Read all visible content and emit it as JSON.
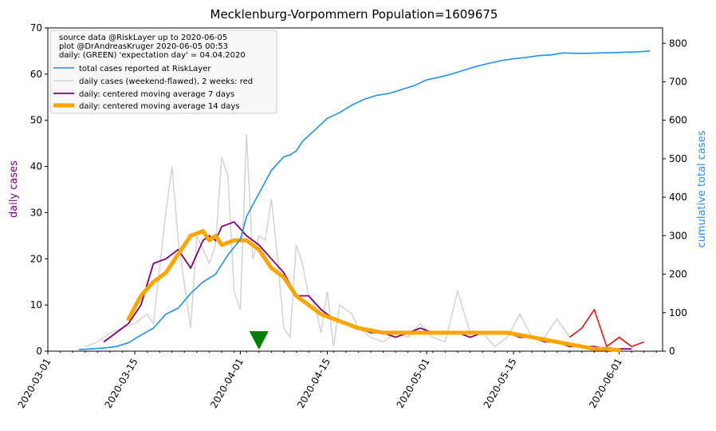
{
  "chart_data": {
    "type": "line",
    "title": "Mecklenburg-Vorpommern Population=1609675",
    "ylabel_left": "daily cases",
    "ylabel_right": "cumulative total cases",
    "ylim_left": [
      0,
      70
    ],
    "ylim_right": [
      0,
      840
    ],
    "yticks_left": [
      "0",
      "10",
      "20",
      "30",
      "40",
      "50",
      "60",
      "70"
    ],
    "yticks_right": [
      "0",
      "100",
      "200",
      "300",
      "400",
      "500",
      "600",
      "700",
      "800"
    ],
    "x_range": [
      "2020-03-01",
      "2020-06-08"
    ],
    "xticks": [
      "2020-03-01",
      "2020-03-15",
      "2020-04-01",
      "2020-04-15",
      "2020-05-01",
      "2020-05-15",
      "2020-06-01"
    ],
    "grid": false,
    "legend_position": "top-left",
    "legend_header": [
      "source data @RiskLayer up to 2020-06-05",
      "plot @DrAndreasKruger 2020-06-05 00:53",
      "daily: (GREEN) 'expectation day' = 04.04.2020"
    ],
    "expectation_day": "2020-04-04",
    "colors": {
      "cumulative": "#1e90ff",
      "daily": "#d3d3d3",
      "daily_recent": "#ff0000",
      "ma7": "#800080",
      "ma14": "#ffa500",
      "marker": "#008000",
      "left_axis_label": "#800080",
      "right_axis_label": "#1e90ff"
    },
    "series": [
      {
        "name": "total cases reported at RiskLayer",
        "axis": "right",
        "x": [
          "2020-03-06",
          "2020-03-08",
          "2020-03-10",
          "2020-03-12",
          "2020-03-14",
          "2020-03-16",
          "2020-03-18",
          "2020-03-19",
          "2020-03-20",
          "2020-03-22",
          "2020-03-24",
          "2020-03-26",
          "2020-03-28",
          "2020-03-29",
          "2020-03-30",
          "2020-03-31",
          "2020-04-01",
          "2020-04-02",
          "2020-04-03",
          "2020-04-04",
          "2020-04-05",
          "2020-04-06",
          "2020-04-08",
          "2020-04-09",
          "2020-04-10",
          "2020-04-11",
          "2020-04-12",
          "2020-04-13",
          "2020-04-15",
          "2020-04-17",
          "2020-04-19",
          "2020-04-21",
          "2020-04-23",
          "2020-04-25",
          "2020-04-27",
          "2020-04-29",
          "2020-05-01",
          "2020-05-03",
          "2020-05-05",
          "2020-05-07",
          "2020-05-09",
          "2020-05-11",
          "2020-05-13",
          "2020-05-15",
          "2020-05-17",
          "2020-05-19",
          "2020-05-21",
          "2020-05-23",
          "2020-05-25",
          "2020-05-27",
          "2020-05-29",
          "2020-05-31",
          "2020-06-02",
          "2020-06-04",
          "2020-06-06"
        ],
        "values": [
          4,
          6,
          8,
          12,
          22,
          42,
          60,
          78,
          96,
          112,
          150,
          180,
          200,
          225,
          250,
          270,
          290,
          350,
          380,
          410,
          440,
          470,
          505,
          510,
          520,
          545,
          560,
          575,
          605,
          620,
          640,
          655,
          665,
          670,
          680,
          690,
          705,
          712,
          720,
          730,
          740,
          748,
          755,
          760,
          763,
          768,
          770,
          775,
          774,
          774,
          775,
          776,
          777,
          778,
          780
        ]
      },
      {
        "name": "daily cases (weekend-flawed), 2 weeks: red",
        "axis": "left",
        "x": [
          "2020-03-07",
          "2020-03-09",
          "2020-03-11",
          "2020-03-13",
          "2020-03-15",
          "2020-03-17",
          "2020-03-18",
          "2020-03-20",
          "2020-03-21",
          "2020-03-22",
          "2020-03-24",
          "2020-03-25",
          "2020-03-27",
          "2020-03-28",
          "2020-03-29",
          "2020-03-30",
          "2020-03-31",
          "2020-04-01",
          "2020-04-02",
          "2020-04-03",
          "2020-04-04",
          "2020-04-05",
          "2020-04-06",
          "2020-04-07",
          "2020-04-08",
          "2020-04-09",
          "2020-04-10",
          "2020-04-11",
          "2020-04-12",
          "2020-04-13",
          "2020-04-14",
          "2020-04-15",
          "2020-04-16",
          "2020-04-17",
          "2020-04-18",
          "2020-04-19",
          "2020-04-20",
          "2020-04-22",
          "2020-04-24",
          "2020-04-26",
          "2020-04-28",
          "2020-04-30",
          "2020-05-02",
          "2020-05-04",
          "2020-05-06",
          "2020-05-08",
          "2020-05-10",
          "2020-05-12",
          "2020-05-14",
          "2020-05-16",
          "2020-05-18",
          "2020-05-20",
          "2020-05-22",
          "2020-05-24",
          "2020-05-26",
          "2020-05-28",
          "2020-05-30",
          "2020-06-01",
          "2020-06-03",
          "2020-06-05"
        ],
        "values": [
          1,
          2,
          4,
          5,
          6,
          8,
          6,
          30,
          40,
          24,
          5,
          25,
          19,
          23,
          42,
          38,
          13,
          9,
          47,
          20,
          25,
          24,
          33,
          20,
          5,
          3,
          23,
          19,
          12,
          10,
          4,
          13,
          1,
          10,
          9,
          8,
          5,
          3,
          2,
          4,
          3,
          6,
          3,
          2,
          13,
          4,
          4,
          1,
          3,
          8,
          3,
          3,
          7,
          3,
          5,
          9,
          1,
          3,
          1,
          2
        ]
      },
      {
        "name": "daily: centered moving average 7 days",
        "axis": "left",
        "x": [
          "2020-03-10",
          "2020-03-12",
          "2020-03-14",
          "2020-03-16",
          "2020-03-18",
          "2020-03-20",
          "2020-03-22",
          "2020-03-24",
          "2020-03-26",
          "2020-03-27",
          "2020-03-28",
          "2020-03-29",
          "2020-03-31",
          "2020-04-02",
          "2020-04-04",
          "2020-04-06",
          "2020-04-08",
          "2020-04-10",
          "2020-04-12",
          "2020-04-14",
          "2020-04-16",
          "2020-04-18",
          "2020-04-20",
          "2020-04-22",
          "2020-04-24",
          "2020-04-26",
          "2020-04-28",
          "2020-04-30",
          "2020-05-02",
          "2020-05-04",
          "2020-05-06",
          "2020-05-08",
          "2020-05-10",
          "2020-05-12",
          "2020-05-14",
          "2020-05-16",
          "2020-05-18",
          "2020-05-20",
          "2020-05-22",
          "2020-05-24",
          "2020-05-26",
          "2020-05-28",
          "2020-05-30",
          "2020-06-01",
          "2020-06-03"
        ],
        "values": [
          2,
          4,
          6,
          10,
          19,
          20,
          22,
          18,
          24,
          25,
          24,
          27,
          28,
          25,
          23,
          20,
          17,
          12,
          12,
          9,
          7,
          6,
          5,
          4,
          4,
          3,
          4,
          5,
          4,
          4,
          4,
          3,
          4,
          4,
          4,
          3,
          3,
          2,
          2,
          1,
          1,
          1,
          0.5,
          0.5,
          0.5
        ]
      },
      {
        "name": "daily: centered moving average 14 days",
        "axis": "left",
        "x": [
          "2020-03-14",
          "2020-03-16",
          "2020-03-18",
          "2020-03-20",
          "2020-03-22",
          "2020-03-24",
          "2020-03-26",
          "2020-03-27",
          "2020-03-28",
          "2020-03-29",
          "2020-03-31",
          "2020-04-02",
          "2020-04-04",
          "2020-04-06",
          "2020-04-08",
          "2020-04-10",
          "2020-04-12",
          "2020-04-14",
          "2020-04-16",
          "2020-04-18",
          "2020-04-20",
          "2020-04-22",
          "2020-04-24",
          "2020-04-26",
          "2020-04-28",
          "2020-04-30",
          "2020-05-02",
          "2020-05-04",
          "2020-05-06",
          "2020-05-08",
          "2020-05-10",
          "2020-05-12",
          "2020-05-14",
          "2020-05-16",
          "2020-05-18",
          "2020-05-20",
          "2020-05-22",
          "2020-05-24",
          "2020-05-26",
          "2020-05-28",
          "2020-05-30",
          "2020-06-01"
        ],
        "values": [
          7,
          12,
          15,
          17,
          21,
          25,
          26,
          24,
          25,
          23,
          24,
          24,
          22,
          18,
          16,
          12,
          10,
          8,
          7,
          6,
          5,
          4.5,
          4,
          4,
          4,
          4,
          4,
          4,
          4,
          4,
          4,
          4,
          4,
          3.5,
          3,
          2.5,
          2,
          1.5,
          1,
          0.5,
          0.5,
          0.2
        ]
      }
    ]
  }
}
